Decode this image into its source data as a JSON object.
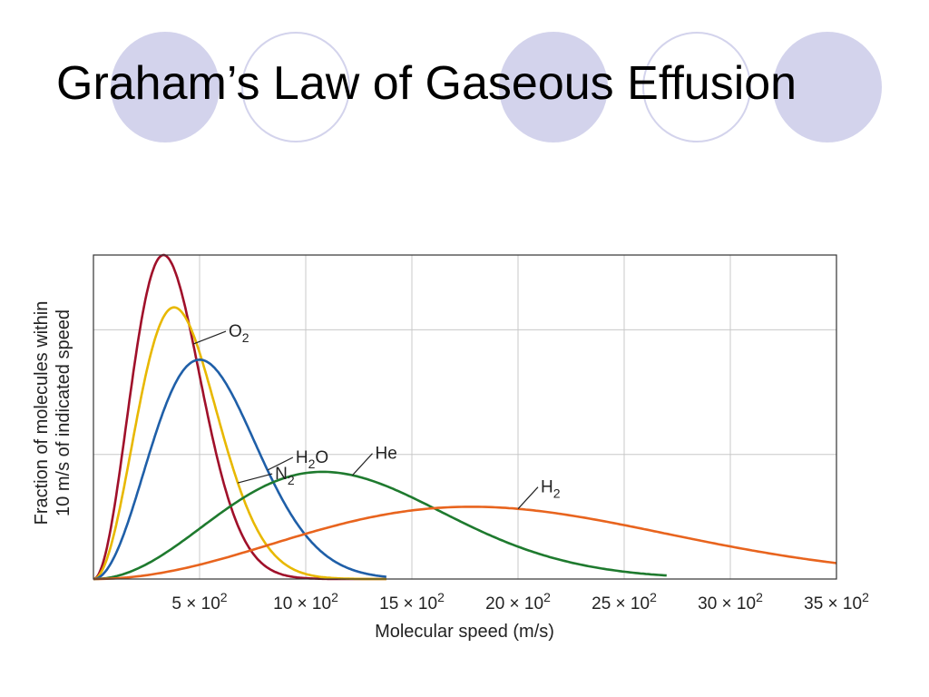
{
  "slide": {
    "title": "Graham’s Law of Gaseous Effusion"
  },
  "colors": {
    "circle_fill": "#d3d3ec",
    "grid": "#c8c8c8",
    "frame": "#333333"
  },
  "chart_data": {
    "type": "line",
    "xlabel": "Molecular speed (m/s)",
    "ylabel_lines": [
      "Fraction of molecules within",
      "10 m/s of indicated speed"
    ],
    "xlim": [
      0,
      3500
    ],
    "ylim": [
      0,
      1.3
    ],
    "grid": true,
    "x_ticks": [
      {
        "value": 500,
        "mantissa": "5",
        "exp": "2"
      },
      {
        "value": 1000,
        "mantissa": "10",
        "exp": "2"
      },
      {
        "value": 1500,
        "mantissa": "15",
        "exp": "2"
      },
      {
        "value": 2000,
        "mantissa": "20",
        "exp": "2"
      },
      {
        "value": 2500,
        "mantissa": "25",
        "exp": "2"
      },
      {
        "value": 3000,
        "mantissa": "30",
        "exp": "2"
      },
      {
        "value": 3500,
        "mantissa": "35",
        "exp": "2"
      }
    ],
    "y_gridlines": [
      0.5,
      1.0
    ],
    "series": [
      {
        "name": "O",
        "sub": "2",
        "color": "#a0102a",
        "peak_x": 330,
        "peak_y": 1.3,
        "x_end": 1380
      },
      {
        "name": "N",
        "sub": "2",
        "color": "#e8b800",
        "peak_x": 380,
        "peak_y": 1.09,
        "x_end": 1380
      },
      {
        "name": "H",
        "sub": "2",
        "suffix": "O",
        "color": "#1f5fa8",
        "peak_x": 500,
        "peak_y": 0.88,
        "x_end": 1380
      },
      {
        "name": "He",
        "color": "#1e7a2e",
        "peak_x": 1080,
        "peak_y": 0.43,
        "x_end": 2700
      },
      {
        "name": "H",
        "sub": "2",
        "color": "#e8641e",
        "peak_x": 1780,
        "peak_y": 0.29,
        "x_end": 3500
      }
    ]
  }
}
